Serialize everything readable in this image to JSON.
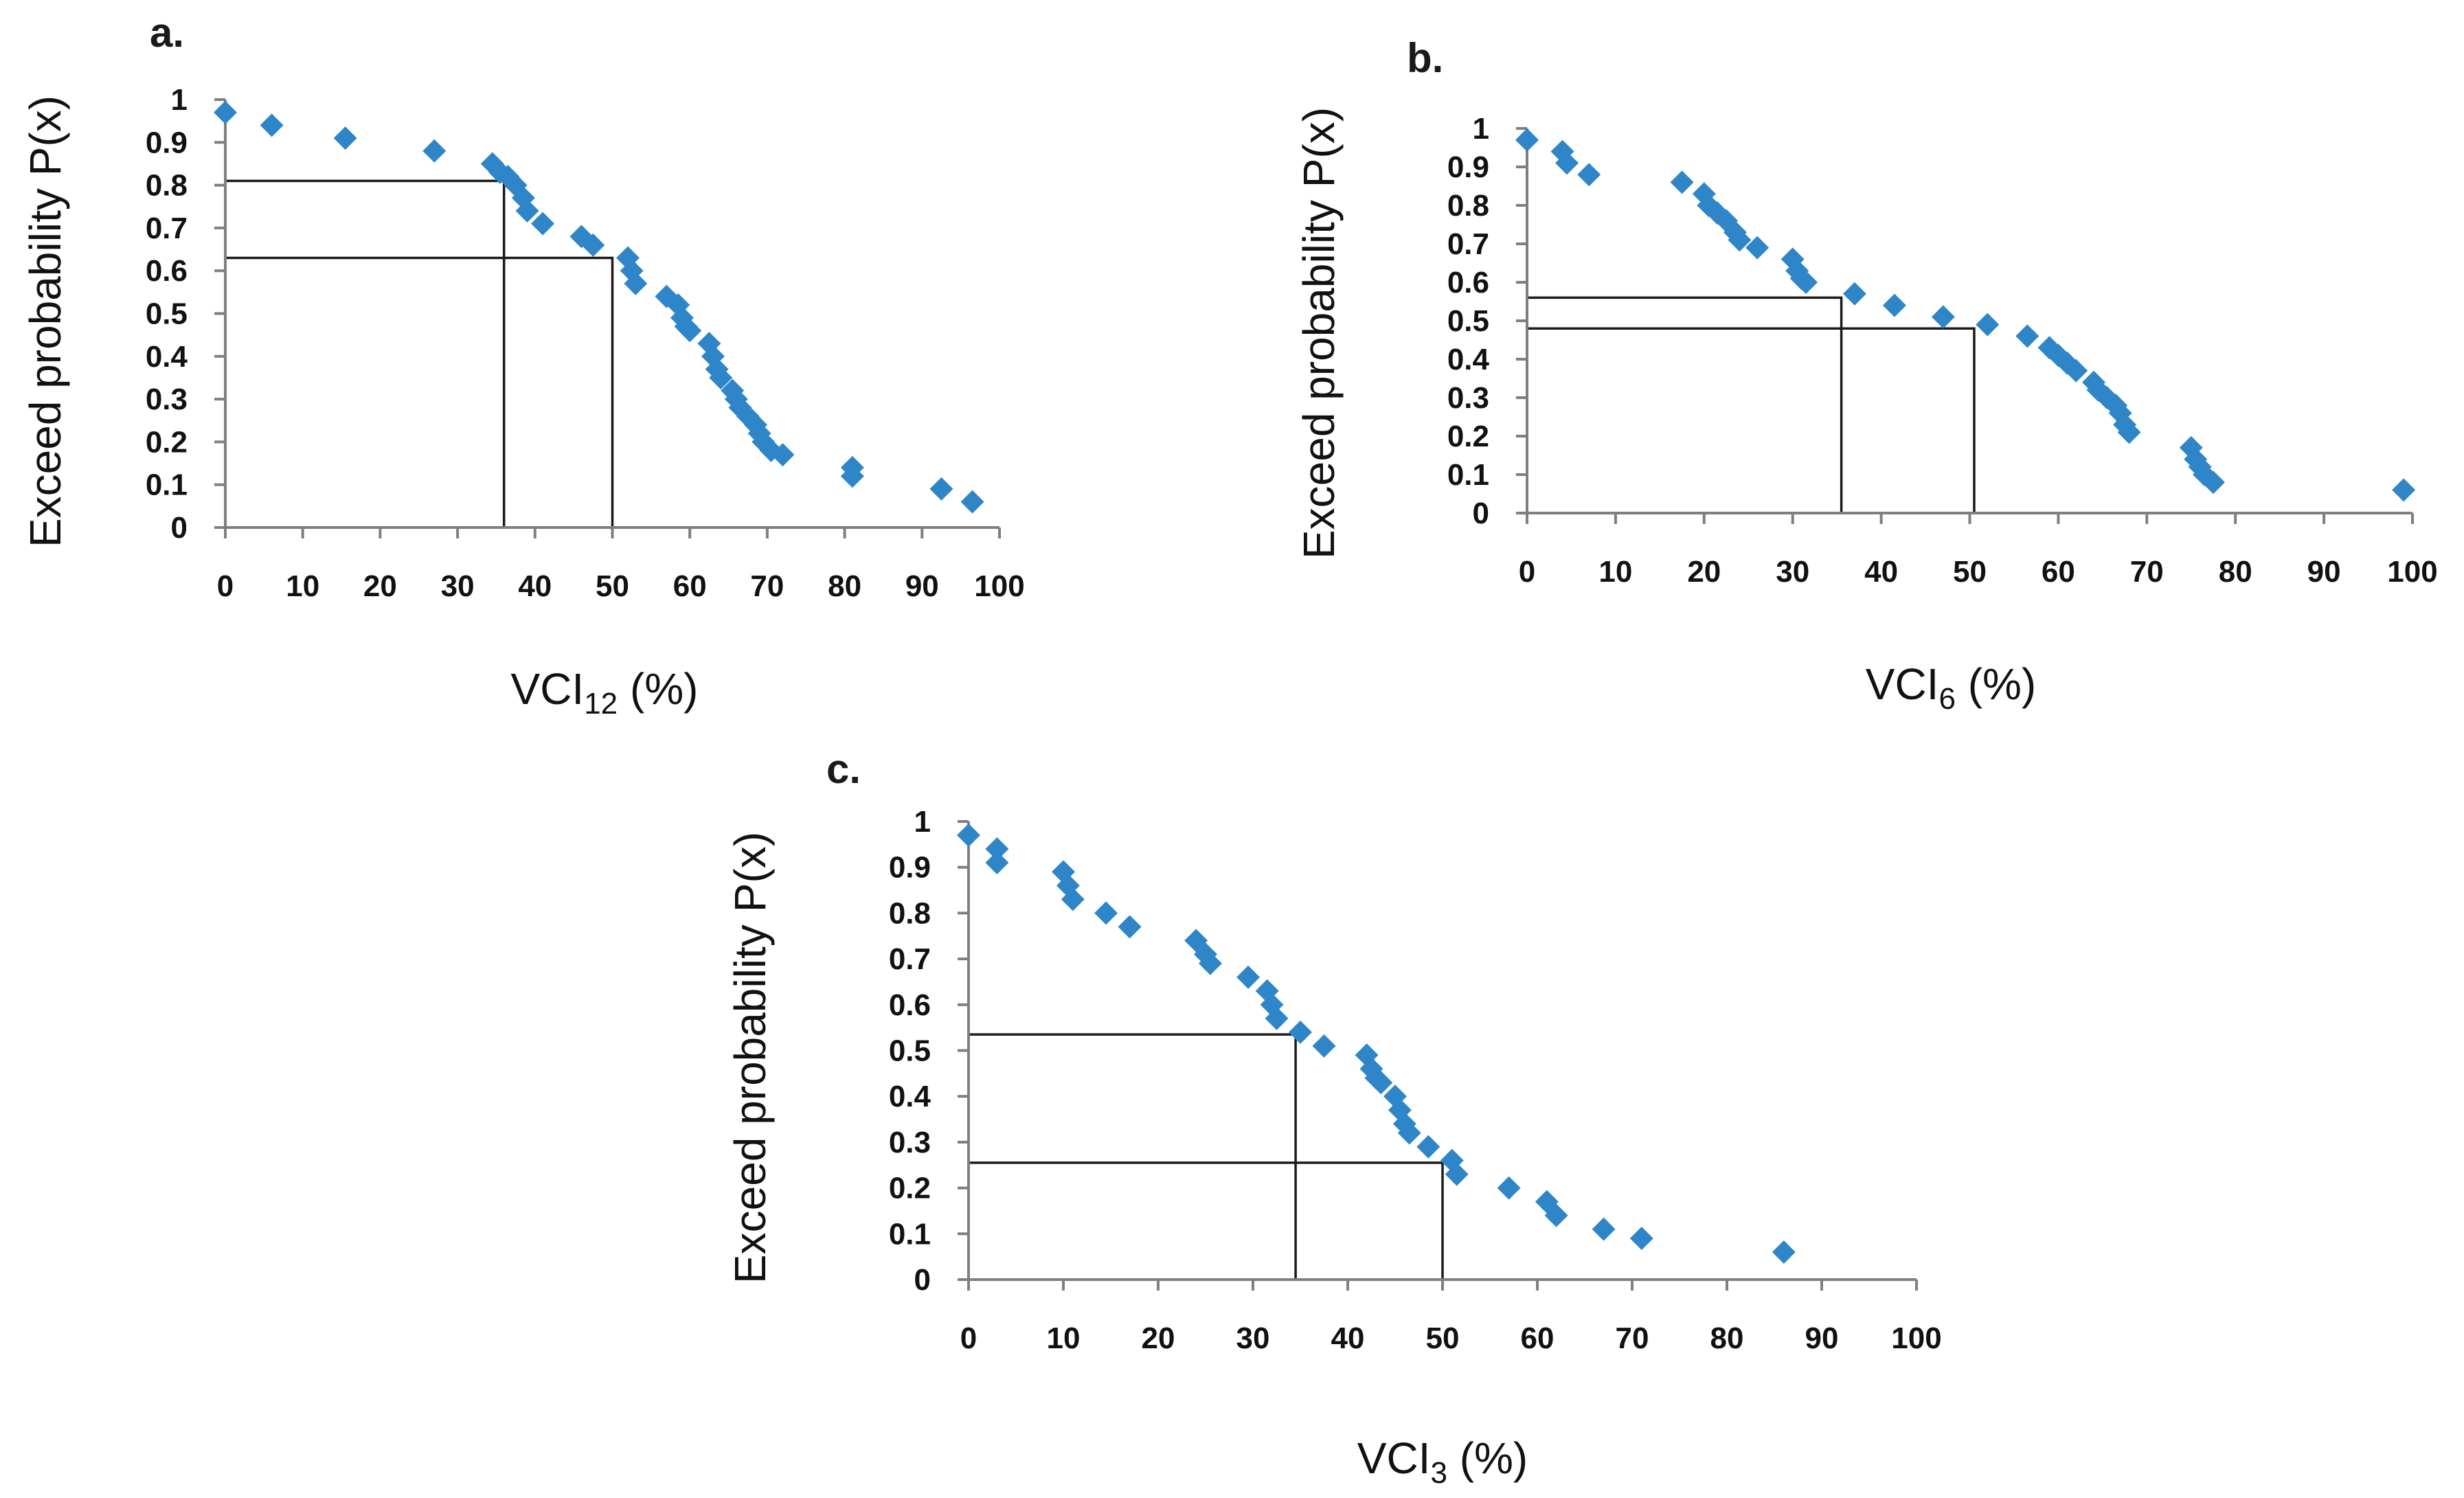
{
  "colors": {
    "marker": "#2e86c8",
    "axis": "#7f7f7f",
    "guide": "#1a1a1a"
  },
  "chart_data": [
    {
      "id": "a",
      "type": "scatter",
      "panel_label": "a.",
      "title": "",
      "xlabel_base": "VCI",
      "xlabel_sub": "12",
      "xlabel_suffix": " (%)",
      "ylabel": "Exceed probability P(x)",
      "xlim": [
        0,
        100
      ],
      "ylim": [
        0,
        1
      ],
      "x_ticks": [
        "0",
        "10",
        "20",
        "30",
        "40",
        "50",
        "60",
        "70",
        "80",
        "90",
        "100"
      ],
      "y_ticks": [
        "0",
        "0.1",
        "0.2",
        "0.3",
        "0.4",
        "0.5",
        "0.6",
        "0.7",
        "0.8",
        "0.9",
        "1"
      ],
      "marker": "diamond",
      "guides": [
        {
          "x": 36,
          "y": 0.81
        },
        {
          "x": 50,
          "y": 0.63
        }
      ],
      "x": [
        0,
        6,
        15.5,
        27,
        34.5,
        35.5,
        36.5,
        37.5,
        38.5,
        39,
        41,
        46,
        47.5,
        52,
        52.5,
        53,
        57,
        58.5,
        59,
        59.5,
        60,
        62.5,
        63,
        63.5,
        64,
        65.5,
        66,
        66.5,
        67.5,
        68.5,
        69,
        69.5,
        70.5,
        72,
        81,
        81,
        92.5,
        96.5
      ],
      "y": [
        0.97,
        0.94,
        0.91,
        0.88,
        0.85,
        0.83,
        0.82,
        0.8,
        0.77,
        0.74,
        0.71,
        0.68,
        0.66,
        0.63,
        0.6,
        0.57,
        0.54,
        0.52,
        0.49,
        0.47,
        0.46,
        0.43,
        0.4,
        0.37,
        0.35,
        0.32,
        0.3,
        0.28,
        0.26,
        0.24,
        0.22,
        0.2,
        0.18,
        0.17,
        0.14,
        0.12,
        0.09,
        0.06
      ]
    },
    {
      "id": "b",
      "type": "scatter",
      "panel_label": "b.",
      "title": "",
      "xlabel_base": "VCI",
      "xlabel_sub": "6",
      "xlabel_suffix": " (%)",
      "ylabel": "Exceed probability P(x)",
      "xlim": [
        0,
        100
      ],
      "ylim": [
        0,
        1
      ],
      "x_ticks": [
        "0",
        "10",
        "20",
        "30",
        "40",
        "50",
        "60",
        "70",
        "80",
        "90",
        "100"
      ],
      "y_ticks": [
        "0",
        "0.1",
        "0.2",
        "0.3",
        "0.4",
        "0.5",
        "0.6",
        "0.7",
        "0.8",
        "0.9",
        "1"
      ],
      "marker": "diamond",
      "guides": [
        {
          "x": 35.5,
          "y": 0.56
        },
        {
          "x": 50.5,
          "y": 0.48
        }
      ],
      "x": [
        0,
        4,
        4.5,
        7,
        17.5,
        20,
        20.5,
        21.5,
        22.5,
        23.5,
        24,
        26,
        30,
        30.5,
        31,
        31.5,
        37,
        41.5,
        47,
        52,
        56.5,
        59,
        60,
        61,
        62,
        64,
        64.5,
        65.5,
        66.5,
        67,
        67.5,
        68,
        75,
        75.5,
        76,
        76.5,
        77.5,
        99
      ],
      "y": [
        0.97,
        0.94,
        0.91,
        0.88,
        0.86,
        0.83,
        0.8,
        0.78,
        0.76,
        0.73,
        0.71,
        0.69,
        0.66,
        0.63,
        0.61,
        0.6,
        0.57,
        0.54,
        0.51,
        0.49,
        0.46,
        0.43,
        0.41,
        0.39,
        0.37,
        0.34,
        0.32,
        0.3,
        0.28,
        0.26,
        0.23,
        0.21,
        0.17,
        0.14,
        0.12,
        0.1,
        0.08,
        0.06
      ]
    },
    {
      "id": "c",
      "type": "scatter",
      "panel_label": "c.",
      "title": "",
      "xlabel_base": "VCI",
      "xlabel_sub": "3",
      "xlabel_suffix": " (%)",
      "ylabel": "Exceed probability P(x)",
      "xlim": [
        0,
        100
      ],
      "ylim": [
        0,
        1
      ],
      "x_ticks": [
        "0",
        "10",
        "20",
        "30",
        "40",
        "50",
        "60",
        "70",
        "80",
        "90",
        "100"
      ],
      "y_ticks": [
        "0",
        "0.1",
        "0.2",
        "0.3",
        "0.4",
        "0.5",
        "0.6",
        "0.7",
        "0.8",
        "0.9",
        "1"
      ],
      "marker": "diamond",
      "guides": [
        {
          "x": 34.5,
          "y": 0.535
        },
        {
          "x": 50,
          "y": 0.255
        }
      ],
      "x": [
        0,
        3,
        3,
        10,
        10.5,
        11,
        14.5,
        17,
        24,
        25,
        25.5,
        29.5,
        31.5,
        32,
        32.5,
        35,
        37.5,
        42,
        42.5,
        43,
        43.5,
        45,
        45.5,
        46,
        46.5,
        48.5,
        51,
        51.5,
        57,
        61,
        62,
        67,
        71,
        86
      ],
      "y": [
        0.97,
        0.94,
        0.91,
        0.89,
        0.86,
        0.83,
        0.8,
        0.77,
        0.74,
        0.71,
        0.69,
        0.66,
        0.63,
        0.6,
        0.57,
        0.54,
        0.51,
        0.49,
        0.46,
        0.44,
        0.43,
        0.4,
        0.37,
        0.34,
        0.32,
        0.29,
        0.26,
        0.23,
        0.2,
        0.17,
        0.14,
        0.11,
        0.09,
        0.06
      ]
    }
  ]
}
